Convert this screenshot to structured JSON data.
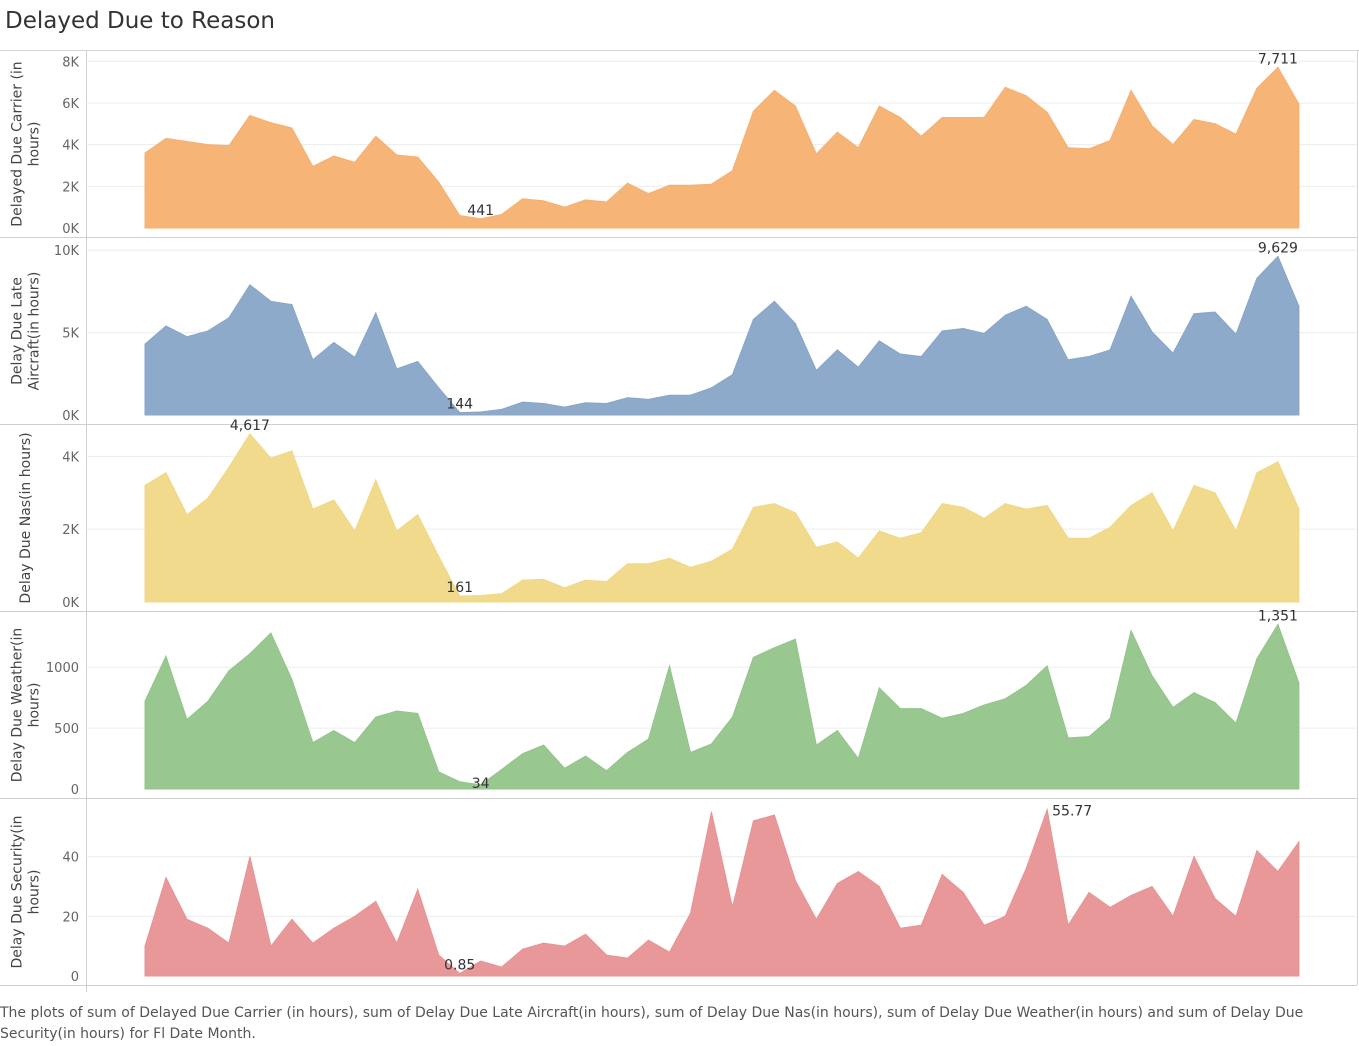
{
  "title": "Delayed Due to Reason",
  "caption": "The plots of sum of Delayed Due Carrier (in hours), sum of Delay Due Late Aircraft(in hours), sum of Delay Due Nas(in hours), sum of Delay Due Weather(in hours) and sum of Delay Due Security(in hours) for Fl Date Month.",
  "chart_data": {
    "type": "area",
    "grid": true,
    "series": [
      {
        "ylabel": "Delayed Due Carrier (in hours)",
        "color": "#f5b070",
        "ylim": [
          0,
          8300
        ],
        "ticks": [
          {
            "v": 0,
            "t": "0K"
          },
          {
            "v": 2000,
            "t": "2K"
          },
          {
            "v": 4000,
            "t": "4K"
          },
          {
            "v": 6000,
            "t": "6K"
          },
          {
            "v": 8000,
            "t": "8K"
          }
        ],
        "values": [
          3600,
          4300,
          4150,
          4000,
          3950,
          5400,
          5050,
          4800,
          2950,
          3450,
          3150,
          4400,
          3500,
          3400,
          2200,
          600,
          441,
          650,
          1400,
          1300,
          1000,
          1350,
          1250,
          2150,
          1650,
          2050,
          2050,
          2100,
          2750,
          5600,
          6600,
          5850,
          3550,
          4600,
          3850,
          5850,
          5300,
          4400,
          5300,
          5300,
          5300,
          6750,
          6350,
          5550,
          3850,
          3800,
          4200,
          6600,
          4900,
          4000,
          5200,
          5000,
          4500,
          6700,
          7711,
          5950
        ],
        "labels": [
          {
            "i": 16,
            "text": "441",
            "pos": "above"
          },
          {
            "i": 54,
            "text": "7,711",
            "pos": "above"
          }
        ]
      },
      {
        "ylabel": "Delay Due Late Aircraft(in hours)",
        "color": "#88a5c7",
        "ylim": [
          0,
          10500
        ],
        "ticks": [
          {
            "v": 0,
            "t": "0K"
          },
          {
            "v": 5000,
            "t": "5K"
          },
          {
            "v": 10000,
            "t": "10K"
          }
        ],
        "values": [
          4300,
          5400,
          4750,
          5100,
          5900,
          7900,
          6900,
          6700,
          3350,
          4400,
          3500,
          6200,
          2800,
          3250,
          1650,
          144,
          180,
          340,
          780,
          700,
          480,
          740,
          700,
          1050,
          950,
          1200,
          1200,
          1650,
          2450,
          5800,
          6900,
          5550,
          2700,
          3950,
          2900,
          4500,
          3700,
          3550,
          5100,
          5250,
          4950,
          6050,
          6600,
          5800,
          3350,
          3550,
          3950,
          7200,
          5050,
          3750,
          6150,
          6250,
          4900,
          8300,
          9629,
          6600
        ],
        "labels": [
          {
            "i": 15,
            "text": "144",
            "pos": "above"
          },
          {
            "i": 54,
            "text": "9,629",
            "pos": "above"
          }
        ]
      },
      {
        "ylabel": "Delay Due Nas(in hours)",
        "color": "#f0d886",
        "ylim": [
          0,
          4750
        ],
        "ticks": [
          {
            "v": 0,
            "t": "0K"
          },
          {
            "v": 2000,
            "t": "2K"
          },
          {
            "v": 4000,
            "t": "4K"
          }
        ],
        "values": [
          3200,
          3550,
          2400,
          2850,
          3700,
          4617,
          3950,
          4150,
          2550,
          2800,
          1950,
          3350,
          1950,
          2400,
          1250,
          161,
          180,
          230,
          600,
          620,
          390,
          600,
          560,
          1050,
          1050,
          1200,
          950,
          1120,
          1450,
          2600,
          2700,
          2450,
          1500,
          1650,
          1200,
          1950,
          1750,
          1900,
          2700,
          2600,
          2300,
          2700,
          2550,
          2650,
          1750,
          1750,
          2050,
          2650,
          3000,
          1950,
          3200,
          3000,
          1950,
          3550,
          3850,
          2550
        ],
        "labels": [
          {
            "i": 5,
            "text": "4,617",
            "pos": "above"
          },
          {
            "i": 15,
            "text": "161",
            "pos": "above"
          }
        ]
      },
      {
        "ylabel": "Delay Due Weather(in hours)",
        "color": "#93c48a",
        "ylim": [
          0,
          1420
        ],
        "ticks": [
          {
            "v": 0,
            "t": "0"
          },
          {
            "v": 500,
            "t": "500"
          },
          {
            "v": 1000,
            "t": "1000"
          }
        ],
        "values": [
          720,
          1090,
          570,
          720,
          970,
          1110,
          1280,
          900,
          380,
          480,
          380,
          590,
          640,
          620,
          140,
          60,
          34,
          160,
          290,
          360,
          170,
          270,
          150,
          300,
          410,
          1010,
          300,
          370,
          590,
          1080,
          1160,
          1230,
          360,
          480,
          250,
          830,
          660,
          660,
          580,
          620,
          690,
          740,
          850,
          1010,
          420,
          430,
          580,
          1300,
          930,
          670,
          790,
          710,
          540,
          1070,
          1351,
          870
        ],
        "labels": [
          {
            "i": 16,
            "text": "34",
            "pos": "below"
          },
          {
            "i": 54,
            "text": "1,351",
            "pos": "above"
          }
        ]
      },
      {
        "ylabel": "Delay Due Security(in hours)",
        "color": "#e89294",
        "ylim": [
          0,
          58
        ],
        "ticks": [
          {
            "v": 0,
            "t": "0"
          },
          {
            "v": 20,
            "t": "20"
          },
          {
            "v": 40,
            "t": "40"
          }
        ],
        "values": [
          10,
          33,
          19,
          16,
          11,
          40,
          10,
          19,
          11,
          16,
          20,
          25,
          11,
          29,
          7,
          0.85,
          5,
          3,
          9,
          11,
          10,
          14,
          7,
          6,
          12,
          8,
          21,
          55,
          23,
          52,
          54,
          32,
          19,
          31,
          35,
          30,
          16,
          17,
          34,
          28,
          17,
          20,
          36,
          55.77,
          17,
          28,
          23,
          27,
          30,
          20,
          40,
          26,
          20,
          42,
          35,
          45
        ],
        "labels": [
          {
            "i": 15,
            "text": "0.85",
            "pos": "above"
          },
          {
            "i": 43,
            "text": "55.77",
            "pos": "right"
          }
        ]
      }
    ]
  }
}
